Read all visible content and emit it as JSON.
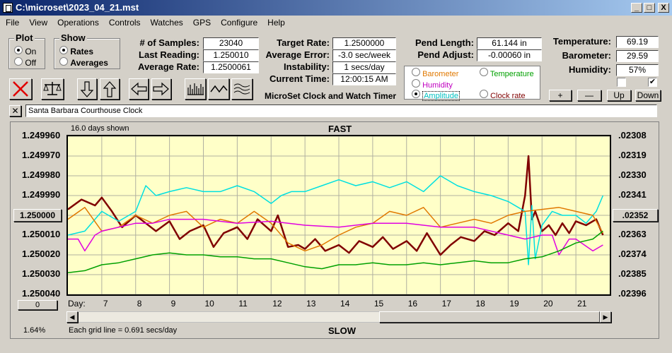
{
  "window": {
    "title": "C:\\microset\\2023_04_21.mst",
    "min": "_",
    "max": "□",
    "close": "X"
  },
  "menu": [
    "File",
    "View",
    "Operations",
    "Controls",
    "Watches",
    "GPS",
    "Configure",
    "Help"
  ],
  "plot_group": {
    "title": "Plot",
    "options": [
      "On",
      "Off"
    ],
    "selected": "On"
  },
  "show_group": {
    "title": "Show",
    "options": [
      "Rates",
      "Averages"
    ],
    "selected": "Rates"
  },
  "stats": {
    "samples_label": "# of Samples:",
    "samples": "23040",
    "last_label": "Last Reading:",
    "last": "1.250010",
    "avg_label": "Average Rate:",
    "avg": "1.2500061",
    "target_label": "Target Rate:",
    "target": "1.2500000",
    "avgerr_label": "Average Error:",
    "avgerr": "-3.0 sec/week",
    "instab_label": "Instability:",
    "instab": "1 secs/day",
    "time_label": "Current Time:",
    "time": "12:00:15 AM",
    "pendlen_label": "Pend Length:",
    "pendlen": "61.144 in",
    "pendadj_label": "Pend Adjust:",
    "pendadj": "-0.00060 in",
    "temp_label": "Temperature:",
    "temp": "69.19",
    "baro_label": "Barometer:",
    "baro": "29.59",
    "hum_label": "Humidity:",
    "hum": "57%"
  },
  "subtitle": "MicroSet Clock and Watch Timer",
  "sensor_group": {
    "options": [
      {
        "label": "Barometer",
        "color": "#e07800",
        "selected": false
      },
      {
        "label": "Temperature",
        "color": "#00a000",
        "selected": false
      },
      {
        "label": "Humidity",
        "color": "#c000c0",
        "selected": false
      },
      {
        "label": "Amplitude",
        "color": "#00c0c0",
        "selected": true
      },
      {
        "label": "Clock rate",
        "color": "#800000",
        "selected": false
      }
    ]
  },
  "adjust_buttons": [
    "+",
    "—",
    "Up",
    "Down"
  ],
  "checkboxes": [
    {
      "checked": false
    },
    {
      "checked": true
    }
  ],
  "toolbar_icons": [
    "stop-icon",
    "balance-icon",
    "arrow-down-icon",
    "arrow-up-icon",
    "arrow-left-icon",
    "arrow-right-icon",
    "bars-icon",
    "wave-icon",
    "multi-wave-icon"
  ],
  "watch_name": "Santa Barbara Courthouse Clock",
  "chart_header": {
    "days_shown": "16.0 days shown",
    "top_label": "FAST",
    "bottom_label": "SLOW",
    "grid_note": "Each grid line = 0.691 secs/day",
    "percent": "1.64%",
    "center_btn": "1.250000",
    "right_btn": ".02352",
    "zero_btn": "0"
  },
  "chart_data": {
    "type": "line",
    "x_label": "Day:",
    "x_ticks": [
      7,
      8,
      9,
      10,
      11,
      12,
      13,
      14,
      15,
      16,
      17,
      18,
      19,
      20,
      21
    ],
    "xlim": [
      6.0,
      22.0
    ],
    "y_left_ticks": [
      "1.249960",
      "1.249970",
      "1.249980",
      "1.249990",
      "1.250000",
      "1.250010",
      "1.250020",
      "1.250030",
      "1.250040"
    ],
    "y_right_ticks": [
      ".02308",
      ".02319",
      ".02330",
      ".02341",
      ".02352",
      ".02363",
      ".02374",
      ".02385",
      ".02396"
    ],
    "ylim": [
      1.24996,
      1.25004
    ],
    "series": [
      {
        "name": "Clock rate",
        "color": "#800000",
        "width": 2.5,
        "x": [
          6.0,
          6.4,
          6.8,
          7.0,
          7.3,
          7.6,
          8.0,
          8.3,
          8.6,
          9.0,
          9.3,
          9.6,
          10.0,
          10.3,
          10.6,
          11.0,
          11.3,
          11.6,
          12.0,
          12.2,
          12.5,
          12.8,
          13.0,
          13.3,
          13.6,
          14.0,
          14.3,
          14.6,
          15.0,
          15.3,
          15.6,
          16.0,
          16.3,
          16.6,
          17.0,
          17.3,
          17.6,
          18.0,
          18.3,
          18.6,
          19.0,
          19.3,
          19.5,
          19.6,
          19.7,
          19.8,
          20.0,
          20.2,
          20.4,
          20.6,
          20.8,
          21.0,
          21.3,
          21.6,
          21.8
        ],
        "y": [
          1.249997,
          1.249992,
          1.249995,
          1.249991,
          1.249998,
          1.250006,
          1.25,
          1.250004,
          1.250008,
          1.250003,
          1.250012,
          1.250008,
          1.250005,
          1.250016,
          1.250009,
          1.250006,
          1.250012,
          1.250002,
          1.250008,
          1.25,
          1.250016,
          1.250015,
          1.250017,
          1.250012,
          1.250018,
          1.250015,
          1.250019,
          1.250013,
          1.250016,
          1.250011,
          1.250017,
          1.250013,
          1.250018,
          1.250009,
          1.25002,
          1.250015,
          1.250011,
          1.250013,
          1.250008,
          1.25001,
          1.250004,
          1.250008,
          1.24999,
          1.24997,
          1.250002,
          1.249998,
          1.250008,
          1.250005,
          1.25001,
          1.250004,
          1.250009,
          1.250003,
          1.250005,
          1.250002,
          1.25001
        ]
      },
      {
        "name": "Amplitude",
        "color": "#00e0e0",
        "width": 1.5,
        "x": [
          6.0,
          6.5,
          7.0,
          7.5,
          8.0,
          8.3,
          8.6,
          9.0,
          9.5,
          10.0,
          10.5,
          11.0,
          11.5,
          12.0,
          12.3,
          12.6,
          13.0,
          13.5,
          14.0,
          14.5,
          15.0,
          15.5,
          16.0,
          16.5,
          17.0,
          17.5,
          18.0,
          18.5,
          19.0,
          19.3,
          19.5,
          19.6,
          19.7,
          19.8,
          20.0,
          20.3,
          20.6,
          21.0,
          21.3,
          21.6,
          21.8
        ],
        "y": [
          1.25001,
          1.250008,
          1.249998,
          1.250003,
          1.249998,
          1.249985,
          1.24999,
          1.249988,
          1.249986,
          1.249988,
          1.249988,
          1.249985,
          1.249988,
          1.249994,
          1.24999,
          1.249988,
          1.249988,
          1.249985,
          1.249982,
          1.249985,
          1.249983,
          1.249986,
          1.249983,
          1.249988,
          1.24998,
          1.249985,
          1.249988,
          1.24999,
          1.249993,
          1.249996,
          1.249998,
          1.250025,
          1.249995,
          1.250022,
          1.250005,
          1.249998,
          1.25,
          1.25,
          1.250004,
          1.249998,
          1.24999
        ]
      },
      {
        "name": "Barometer",
        "color": "#e07800",
        "width": 1.5,
        "x": [
          6.0,
          6.5,
          7.0,
          7.5,
          8.0,
          8.5,
          9.0,
          9.5,
          10.0,
          10.5,
          11.0,
          11.5,
          12.0,
          12.5,
          13.0,
          13.5,
          14.0,
          14.5,
          15.0,
          15.5,
          16.0,
          16.5,
          17.0,
          17.5,
          18.0,
          18.5,
          19.0,
          19.5,
          20.0,
          20.5,
          21.0,
          21.5,
          21.8
        ],
        "y": [
          1.250002,
          1.249996,
          1.250008,
          1.250006,
          1.25,
          1.250004,
          1.25,
          1.249998,
          1.250006,
          1.250002,
          1.250004,
          1.249998,
          1.250004,
          1.250014,
          1.250018,
          1.250015,
          1.25001,
          1.250006,
          1.250004,
          1.249998,
          1.25,
          1.249996,
          1.250006,
          1.250004,
          1.250002,
          1.250004,
          1.25,
          1.249998,
          1.249997,
          1.249996,
          1.249998,
          1.25,
          1.250009
        ]
      },
      {
        "name": "Humidity",
        "color": "#e000e0",
        "width": 1.5,
        "x": [
          6.0,
          6.3,
          6.5,
          6.8,
          7.0,
          7.5,
          8.0,
          8.5,
          9.0,
          10.0,
          11.0,
          12.0,
          13.0,
          14.0,
          15.0,
          16.0,
          17.0,
          18.0,
          18.5,
          19.0,
          19.5,
          20.0,
          20.3,
          20.5,
          20.8,
          21.0,
          21.5,
          21.8
        ],
        "y": [
          1.250012,
          1.250012,
          1.250018,
          1.25001,
          1.250008,
          1.250006,
          1.250004,
          1.250004,
          1.250002,
          1.250002,
          1.250004,
          1.250003,
          1.250005,
          1.250006,
          1.250004,
          1.250004,
          1.250006,
          1.250006,
          1.250008,
          1.25001,
          1.250012,
          1.25001,
          1.25001,
          1.25002,
          1.250012,
          1.250012,
          1.250018,
          1.250015
        ]
      },
      {
        "name": "Temperature",
        "color": "#00a000",
        "width": 1.5,
        "x": [
          6.0,
          6.5,
          7.0,
          7.5,
          8.0,
          8.5,
          9.0,
          9.5,
          10.0,
          10.5,
          11.0,
          11.5,
          12.0,
          12.5,
          13.0,
          13.5,
          14.0,
          14.5,
          15.0,
          15.5,
          16.0,
          16.5,
          17.0,
          17.5,
          18.0,
          18.5,
          19.0,
          19.5,
          20.0,
          20.5,
          21.0,
          21.5,
          21.8
        ],
        "y": [
          1.250029,
          1.250028,
          1.250025,
          1.250024,
          1.250022,
          1.25002,
          1.250019,
          1.25002,
          1.25002,
          1.250021,
          1.250021,
          1.250022,
          1.250022,
          1.250024,
          1.250026,
          1.250027,
          1.250025,
          1.250025,
          1.250024,
          1.250025,
          1.250025,
          1.250024,
          1.250025,
          1.250024,
          1.250023,
          1.250024,
          1.250024,
          1.250022,
          1.250021,
          1.250018,
          1.250014,
          1.250012,
          1.250008
        ]
      }
    ]
  }
}
